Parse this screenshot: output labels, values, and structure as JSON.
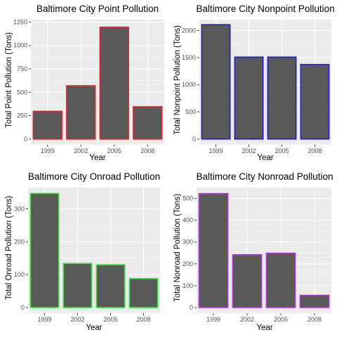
{
  "chart_data": [
    {
      "type": "bar",
      "title": "Baltimore City Point Pollution",
      "xlabel": "Year",
      "ylabel": "Total Point Pollution (Tons)",
      "categories": [
        "1999",
        "2002",
        "2005",
        "2008"
      ],
      "values": [
        296,
        569,
        1195,
        345
      ],
      "ylim": [
        0,
        1250
      ],
      "yticks": [
        0,
        250,
        500,
        750,
        1000,
        1250
      ],
      "grid": true,
      "fill_color": "#595959",
      "outline_color": "#d62a2a"
    },
    {
      "type": "bar",
      "title": "Baltimore City Nonpoint Pollution",
      "xlabel": "Year",
      "ylabel": "Total Nonpoint Pollution (Tons)",
      "categories": [
        "1999",
        "2002",
        "2005",
        "2008"
      ],
      "values": [
        2107,
        1510,
        1510,
        1373
      ],
      "ylim": [
        0,
        2000
      ],
      "yticks": [
        0,
        500,
        1000,
        1500,
        2000
      ],
      "grid": true,
      "fill_color": "#595959",
      "outline_color": "#1f1fc8"
    },
    {
      "type": "bar",
      "title": "Baltimore City Onroad Pollution",
      "xlabel": "Year",
      "ylabel": "Total Onroad Pollution (Tons)",
      "categories": [
        "1999",
        "2002",
        "2005",
        "2008"
      ],
      "values": [
        347,
        134,
        130,
        88
      ],
      "ylim": [
        0,
        300
      ],
      "yticks": [
        0,
        100,
        200,
        300
      ],
      "grid": true,
      "fill_color": "#595959",
      "outline_color": "#3de03d"
    },
    {
      "type": "bar",
      "title": "Baltimore City Nonroad Pollution",
      "xlabel": "Year",
      "ylabel": "Total Nonroad Pollution (Tons)",
      "categories": [
        "1999",
        "2002",
        "2005",
        "2008"
      ],
      "values": [
        522,
        242,
        249,
        56
      ],
      "ylim": [
        0,
        500
      ],
      "yticks": [
        0,
        100,
        200,
        300,
        400,
        500
      ],
      "grid": true,
      "fill_color": "#595959",
      "outline_color": "#b23ad6"
    }
  ]
}
